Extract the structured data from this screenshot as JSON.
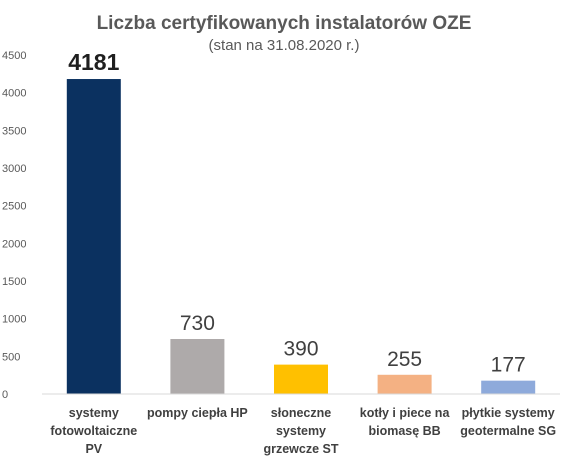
{
  "chart_data": {
    "type": "bar",
    "title": "Liczba certyfikowanych instalatorów OZE",
    "subtitle": "(stan na 31.08.2020 r.)",
    "xlabel": "",
    "ylabel": "",
    "ylim": [
      0,
      4500
    ],
    "yticks": [
      0,
      500,
      1000,
      1500,
      2000,
      2500,
      3000,
      3500,
      4000,
      4500
    ],
    "grid": false,
    "legend": "none",
    "categories": [
      [
        "systemy",
        "fotowoltaiczne",
        "PV"
      ],
      [
        "pompy ciepła HP"
      ],
      [
        "słoneczne",
        "systemy",
        "grzewcze ST"
      ],
      [
        "kotły i piece na",
        "biomasę BB"
      ],
      [
        "płytkie systemy",
        "geotermalne SG"
      ]
    ],
    "values": [
      4181,
      730,
      390,
      255,
      177
    ],
    "value_labels": [
      "4181",
      "730",
      "390",
      "255",
      "177"
    ],
    "colors": [
      "#0b3160",
      "#aeaaaa",
      "#ffc000",
      "#f4b183",
      "#8eaadb"
    ],
    "highlight_first_label": true
  }
}
